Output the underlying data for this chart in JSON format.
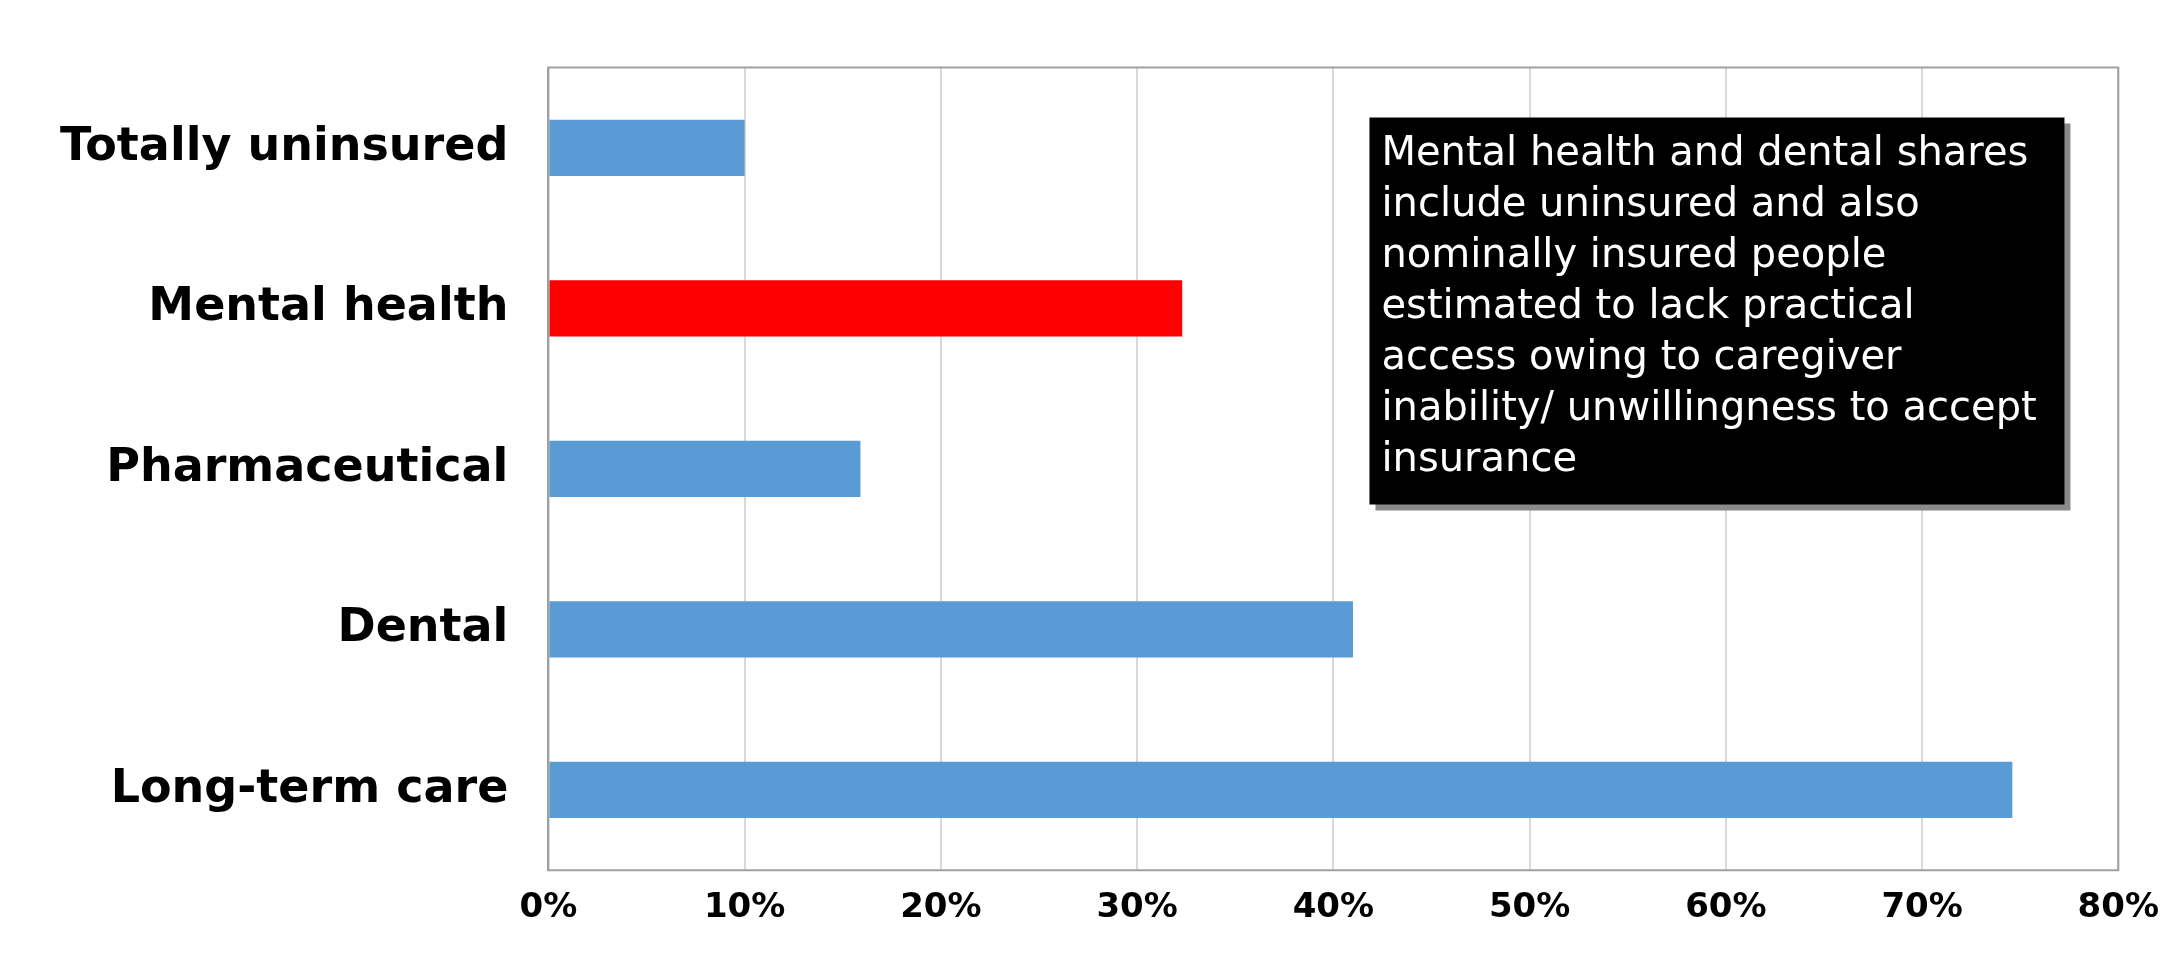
{
  "chart_data": {
    "type": "bar",
    "orientation": "horizontal",
    "categories": [
      "Totally uninsured",
      "Mental health",
      "Pharmaceutical",
      "Dental",
      "Long-term care"
    ],
    "values": [
      10,
      32.3,
      15.9,
      41,
      74.6
    ],
    "colors": [
      "#5b9bd5",
      "#ff0000",
      "#5b9bd5",
      "#5b9bd5",
      "#5b9bd5"
    ],
    "xlim": [
      0,
      80
    ],
    "xticks": [
      {
        "value": 0,
        "label": "0%"
      },
      {
        "value": 10,
        "label": "10%"
      },
      {
        "value": 20,
        "label": "20%"
      },
      {
        "value": 30,
        "label": "30%"
      },
      {
        "value": 40,
        "label": "40%"
      },
      {
        "value": 50,
        "label": "50%"
      },
      {
        "value": 60,
        "label": "60%"
      },
      {
        "value": 70,
        "label": "70%"
      },
      {
        "value": 80,
        "label": "80%"
      }
    ],
    "grid": "x",
    "annotations": [
      "Mental health and dental shares include uninsured and also nominally insured people estimated to lack practical access owing to caregiver inability/ unwillingness to accept insurance"
    ]
  }
}
